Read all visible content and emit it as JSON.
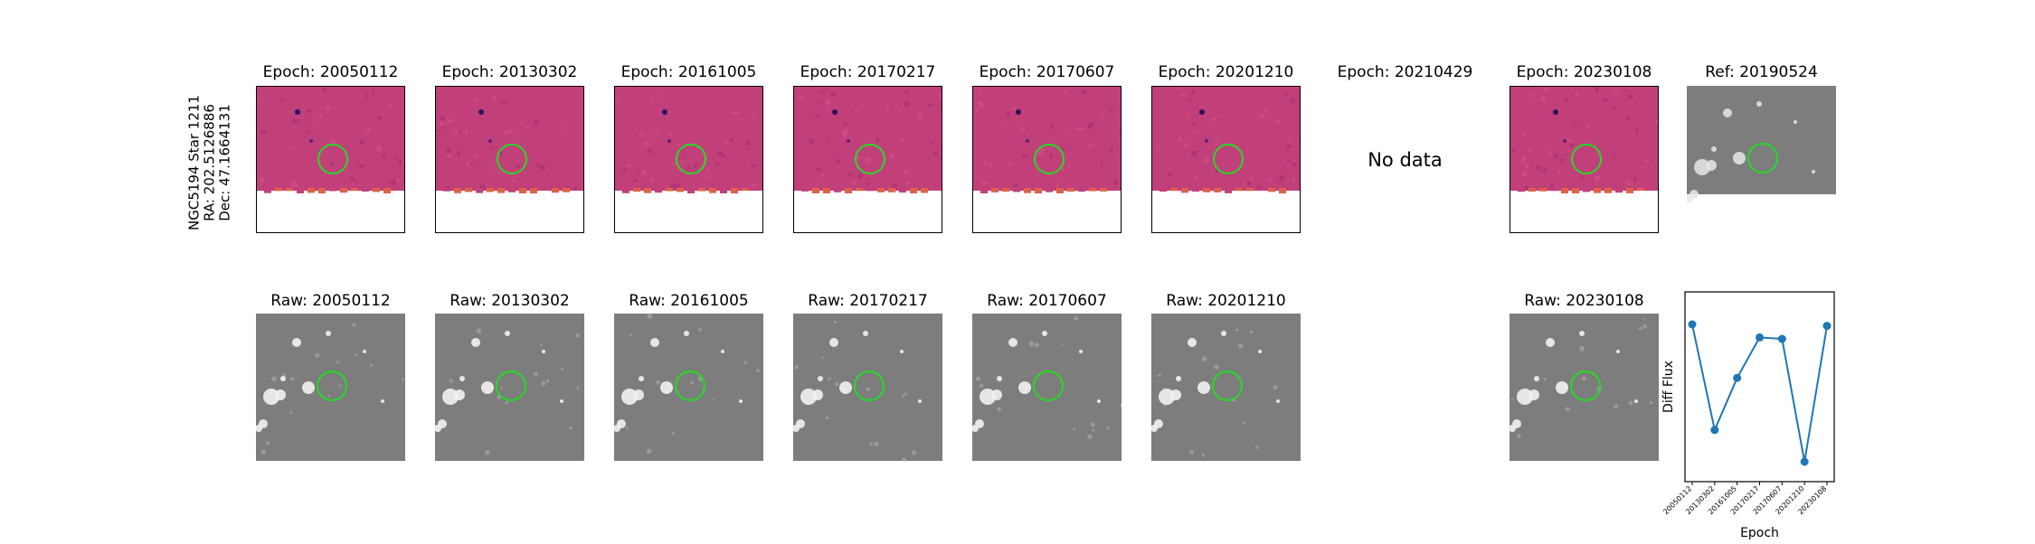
{
  "object": {
    "name": "NGC5194 Star 1211",
    "ra": "RA: 202.5126886",
    "dec": "Dec: 47.1664131"
  },
  "top_row": [
    {
      "title": "Epoch: 20050112",
      "kind": "diff"
    },
    {
      "title": "Epoch: 20130302",
      "kind": "diff"
    },
    {
      "title": "Epoch: 20161005",
      "kind": "diff"
    },
    {
      "title": "Epoch: 20170217",
      "kind": "diff"
    },
    {
      "title": "Epoch: 20170607",
      "kind": "diff"
    },
    {
      "title": "Epoch: 20201210",
      "kind": "diff"
    },
    {
      "title": "Epoch: 20210429",
      "kind": "nodata",
      "nodata_text": "No data"
    },
    {
      "title": "Epoch: 20230108",
      "kind": "diff"
    },
    {
      "title": "Ref: 20190524",
      "kind": "ref"
    }
  ],
  "bottom_row": [
    {
      "title": "Raw: 20050112"
    },
    {
      "title": "Raw: 20130302"
    },
    {
      "title": "Raw: 20161005"
    },
    {
      "title": "Raw: 20170217"
    },
    {
      "title": "Raw: 20170607"
    },
    {
      "title": "Raw: 20201210"
    },
    {
      "title": "Raw: 20230108"
    }
  ],
  "colors": {
    "diff_bg": "#c2407a",
    "circle": "#22dd22",
    "raw_bg": "#7d7d7d",
    "line": "#1f77b4"
  },
  "chart_data": {
    "type": "line",
    "x": [
      "20050112",
      "20130302",
      "20161005",
      "20170217",
      "20170607",
      "20201210",
      "20230108"
    ],
    "values": [
      0.95,
      0.22,
      0.58,
      0.86,
      0.85,
      0.0,
      0.94
    ],
    "xlabel": "Epoch",
    "ylabel": "Diff Flux",
    "yticks_shown": false
  }
}
